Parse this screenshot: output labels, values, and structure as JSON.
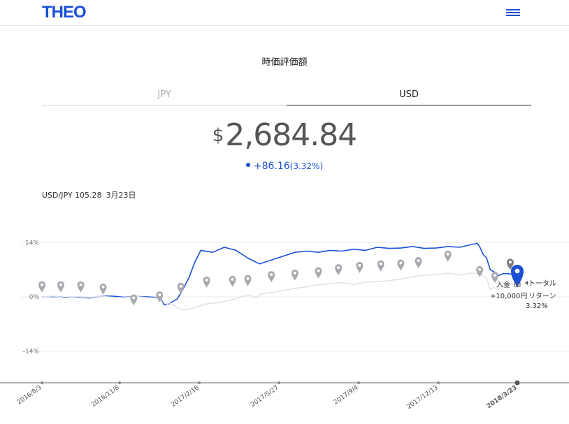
{
  "header": {
    "logo": "THEO",
    "menu_icon": "hamburger-menu-icon"
  },
  "section_title": "時価評価額",
  "tabs": [
    {
      "label": "JPY",
      "active": false
    },
    {
      "label": "USD",
      "active": true
    }
  ],
  "valuation": {
    "currency_symbol": "$",
    "amount": "2,684.84"
  },
  "change": {
    "value": "+86.16",
    "percent": "(3.32%)"
  },
  "fx": {
    "pair": "USD/JPY 105.28",
    "date": "3月23日"
  },
  "colors": {
    "accent": "#1a4fd6",
    "benchmark": "#dde0ea",
    "marker": "#a9aab0"
  },
  "chart_data": {
    "type": "line",
    "y_ticks": [
      "14%",
      "0%",
      "-14%"
    ],
    "ylim": [
      -20,
      20
    ],
    "x_ticks": [
      "2016/8/3",
      "2016/11/8",
      "2017/2/16",
      "2017/5/27",
      "2017/9/4",
      "2017/12/13",
      "2018/3/23"
    ],
    "series": [
      {
        "values": [
          [
            0,
            0
          ],
          [
            10,
            0.2
          ],
          [
            20,
            -0.3
          ],
          [
            30,
            0.1
          ],
          [
            40,
            -0.2
          ],
          [
            50,
            0.2
          ],
          [
            60,
            -0.1
          ],
          [
            70,
            -0.2
          ],
          [
            80,
            0.1
          ],
          [
            90,
            -0.2
          ],
          [
            100,
            -0.3
          ],
          [
            104,
            -2.6
          ],
          [
            108,
            -1.5
          ],
          [
            115,
            -2.8
          ],
          [
            120,
            -3.3
          ],
          [
            125,
            -3.2
          ],
          [
            130,
            -2.7
          ],
          [
            140,
            -1.8
          ],
          [
            150,
            -1.5
          ],
          [
            160,
            -0.9
          ],
          [
            170,
            0.2
          ],
          [
            178,
            0.4
          ],
          [
            182,
            -0.2
          ],
          [
            186,
            0.7
          ],
          [
            195,
            1.1
          ],
          [
            205,
            1.7
          ],
          [
            215,
            2.2
          ],
          [
            225,
            2.6
          ],
          [
            235,
            3.1
          ],
          [
            245,
            3.4
          ],
          [
            255,
            3.7
          ],
          [
            265,
            3.2
          ],
          [
            275,
            3.8
          ],
          [
            285,
            3.9
          ],
          [
            295,
            4.2
          ],
          [
            305,
            4.6
          ],
          [
            315,
            5.2
          ],
          [
            325,
            5.6
          ],
          [
            335,
            5.7
          ],
          [
            345,
            6.1
          ],
          [
            355,
            5.6
          ],
          [
            365,
            6.1
          ],
          [
            372,
            6.0
          ],
          [
            378,
            4.8
          ],
          [
            381,
            1.8
          ],
          [
            384,
            2.5
          ],
          [
            388,
            1.8
          ],
          [
            392,
            3.0
          ],
          [
            395,
            3.1
          ],
          [
            400,
            3.3
          ],
          [
            404,
            3.2
          ]
        ]
      },
      {
        "values": [
          [
            0,
            0
          ],
          [
            10,
            0.1
          ],
          [
            20,
            -0.2
          ],
          [
            30,
            0.0
          ],
          [
            40,
            -0.3
          ],
          [
            50,
            0.2
          ],
          [
            60,
            0.2
          ],
          [
            70,
            -0.1
          ],
          [
            80,
            0.1
          ],
          [
            90,
            0.0
          ],
          [
            100,
            -0.2
          ],
          [
            104,
            -2.0
          ],
          [
            108,
            -1.8
          ],
          [
            115,
            -0.5
          ],
          [
            120,
            2.0
          ],
          [
            125,
            5.0
          ],
          [
            130,
            9.0
          ],
          [
            135,
            12.0
          ],
          [
            145,
            11.5
          ],
          [
            155,
            12.8
          ],
          [
            165,
            12.0
          ],
          [
            175,
            10.0
          ],
          [
            185,
            8.5
          ],
          [
            195,
            9.5
          ],
          [
            205,
            10.5
          ],
          [
            215,
            11.5
          ],
          [
            225,
            11.8
          ],
          [
            235,
            11.5
          ],
          [
            245,
            12.0
          ],
          [
            255,
            11.8
          ],
          [
            265,
            12.3
          ],
          [
            275,
            12.0
          ],
          [
            285,
            12.8
          ],
          [
            295,
            12.5
          ],
          [
            305,
            12.6
          ],
          [
            315,
            13.0
          ],
          [
            325,
            12.5
          ],
          [
            335,
            12.6
          ],
          [
            345,
            13.0
          ],
          [
            355,
            12.8
          ],
          [
            365,
            13.5
          ],
          [
            370,
            13.8
          ],
          [
            372,
            13.0
          ],
          [
            375,
            11.0
          ],
          [
            378,
            10.0
          ],
          [
            381,
            7.0
          ],
          [
            384,
            6.5
          ],
          [
            388,
            5.5
          ],
          [
            392,
            6.0
          ],
          [
            396,
            6.0
          ],
          [
            400,
            5.8
          ],
          [
            404,
            5.2
          ]
        ]
      }
    ],
    "markers": [
      {
        "t": 0,
        "v": 2.6
      },
      {
        "t": 16,
        "v": 2.6
      },
      {
        "t": 33,
        "v": 2.6
      },
      {
        "t": 52,
        "v": 2.0
      },
      {
        "t": 78,
        "v": -0.8
      },
      {
        "t": 100,
        "v": 0.0
      },
      {
        "t": 118,
        "v": 2.2
      },
      {
        "t": 140,
        "v": 3.8
      },
      {
        "t": 162,
        "v": 4.0
      },
      {
        "t": 175,
        "v": 4.2
      },
      {
        "t": 195,
        "v": 5.2
      },
      {
        "t": 215,
        "v": 5.6
      },
      {
        "t": 235,
        "v": 6.2
      },
      {
        "t": 252,
        "v": 7.0
      },
      {
        "t": 270,
        "v": 7.6
      },
      {
        "t": 288,
        "v": 8.0
      },
      {
        "t": 305,
        "v": 8.2
      },
      {
        "t": 320,
        "v": 8.8
      },
      {
        "t": 345,
        "v": 10.5
      },
      {
        "t": 372,
        "v": 6.5
      },
      {
        "t": 385,
        "v": 5.0
      },
      {
        "t": 398,
        "v": 8.4
      }
    ],
    "annotations": {
      "deposit_label": "入金",
      "deposit_amount": "+10,000円",
      "total_return_label_1": "トータル",
      "total_return_label_2": "リターン",
      "total_return_value": "3.32%"
    }
  }
}
